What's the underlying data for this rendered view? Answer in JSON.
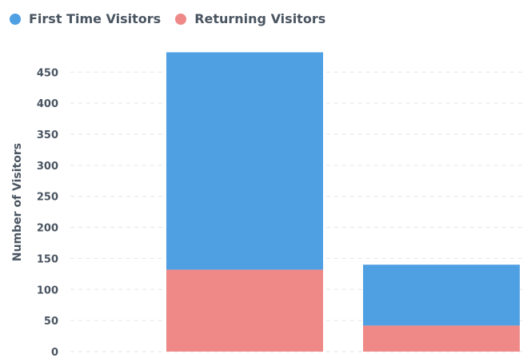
{
  "legend": {
    "first_label": "First Time Visitors",
    "returning_label": "Returning Visitors"
  },
  "colors": {
    "first": "#4f9fe3",
    "returning": "#ef8987",
    "grid": "#e3e6ea",
    "text": "#4a5561"
  },
  "chart_data": {
    "type": "bar",
    "stacked": true,
    "categories": [
      "",
      ""
    ],
    "series": [
      {
        "name": "Returning Visitors",
        "values": [
          132,
          42
        ]
      },
      {
        "name": "First Time Visitors",
        "values": [
          350,
          98
        ]
      }
    ],
    "ylabel": "Number of Visitors",
    "yticks": [
      "0",
      "50",
      "100",
      "150",
      "200",
      "250",
      "300",
      "350",
      "400",
      "450"
    ],
    "ylim": [
      0,
      482
    ],
    "grid": true,
    "legend_position": "top-left"
  }
}
